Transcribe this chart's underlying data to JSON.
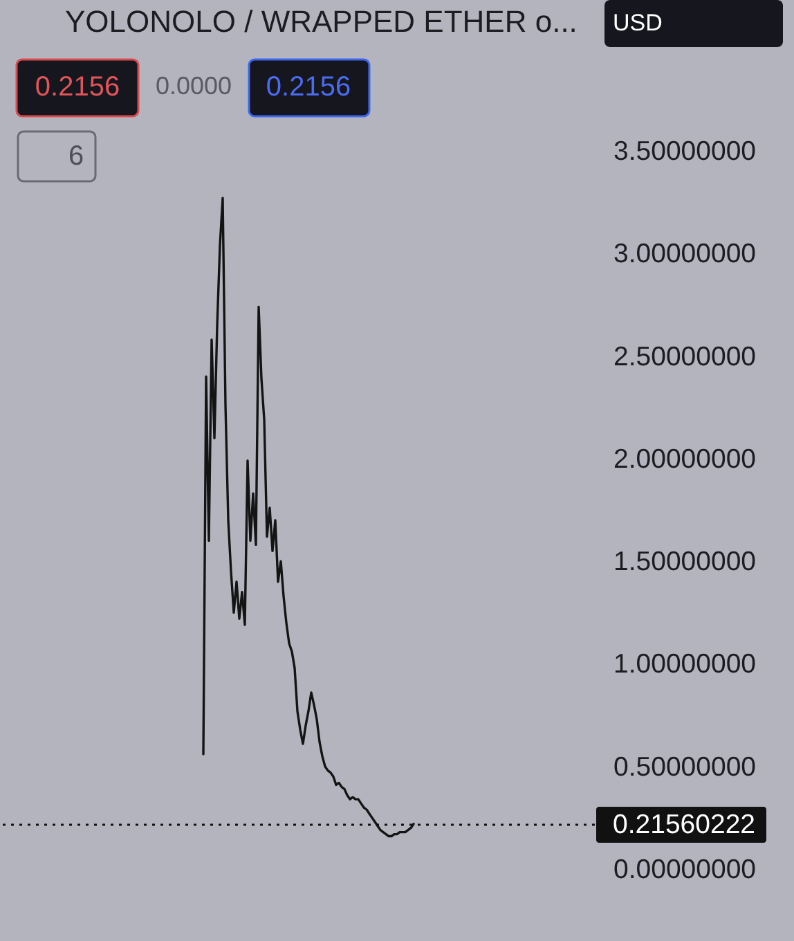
{
  "chart_data": {
    "type": "line",
    "title": "YOLONOLO / WRAPPED ETHER o...",
    "categories": [
      null,
      null,
      null,
      null,
      null,
      null,
      null,
      null,
      null,
      null,
      null,
      null,
      null,
      null,
      null,
      null,
      null,
      null,
      null,
      null,
      null,
      null,
      null,
      null,
      null,
      null,
      null,
      null,
      null,
      null,
      null,
      null,
      null,
      null,
      null,
      null,
      null,
      null,
      null,
      null,
      null,
      null,
      null,
      null,
      null,
      null,
      null,
      null,
      null,
      null,
      null,
      null,
      null,
      null,
      null,
      null,
      null,
      null,
      null,
      null,
      null,
      null,
      null,
      null,
      null,
      null,
      null,
      null,
      null,
      null,
      null,
      null,
      null,
      null,
      null,
      null,
      null,
      null,
      null,
      null,
      null,
      null,
      null,
      null,
      null,
      null,
      null,
      null,
      null,
      null,
      null,
      null,
      null,
      null,
      null,
      null,
      null,
      null,
      null,
      null,
      null,
      null,
      null,
      null,
      null,
      null,
      null,
      null,
      null,
      null,
      null,
      null,
      null,
      null,
      null,
      null,
      null,
      null,
      null,
      null,
      null,
      null,
      null,
      null,
      null,
      null,
      null,
      null,
      null,
      null,
      null,
      null,
      null,
      null,
      null,
      null,
      null,
      null,
      null,
      null,
      null,
      null,
      null,
      null,
      null,
      null,
      null,
      null,
      null,
      null,
      null,
      null,
      null,
      null,
      null,
      null,
      null,
      null,
      null,
      null,
      null,
      null,
      null,
      null,
      null,
      null,
      null,
      null,
      null,
      null,
      null,
      null,
      null,
      null,
      null,
      null,
      null,
      null,
      null,
      null,
      null,
      null,
      null,
      null,
      null,
      null,
      null,
      null,
      null,
      null,
      null,
      null,
      null,
      null,
      null,
      null,
      null,
      null,
      null,
      null,
      null,
      null,
      null,
      null,
      null,
      null,
      null,
      null,
      null,
      null,
      null,
      null,
      null,
      null,
      null
    ],
    "series": [
      {
        "color": "#141414",
        "values": [
          null,
          null,
          null,
          null,
          null,
          null,
          null,
          null,
          null,
          null,
          null,
          null,
          null,
          null,
          null,
          null,
          null,
          null,
          null,
          null,
          null,
          null,
          null,
          null,
          null,
          null,
          null,
          null,
          null,
          null,
          null,
          null,
          null,
          null,
          null,
          null,
          null,
          null,
          null,
          null,
          null,
          null,
          null,
          null,
          null,
          null,
          null,
          null,
          null,
          null,
          null,
          null,
          null,
          null,
          null,
          null,
          null,
          null,
          null,
          null,
          null,
          null,
          null,
          null,
          null,
          null,
          null,
          null,
          null,
          null,
          null,
          null,
          null,
          0.56,
          2.4,
          1.6,
          2.58,
          2.1,
          2.65,
          3.04,
          3.27,
          2.26,
          1.7,
          1.45,
          1.25,
          1.4,
          1.22,
          1.35,
          1.19,
          1.99,
          1.6,
          1.83,
          1.58,
          2.74,
          2.39,
          2.19,
          1.62,
          1.76,
          1.55,
          1.7,
          1.4,
          1.5,
          1.33,
          1.2,
          1.1,
          1.06,
          0.98,
          0.77,
          0.68,
          0.61,
          0.7,
          0.77,
          0.86,
          0.8,
          0.73,
          0.62,
          0.55,
          0.5,
          0.48,
          0.47,
          0.45,
          0.41,
          0.42,
          0.4,
          0.39,
          0.36,
          0.34,
          0.35,
          0.34,
          0.34,
          0.32,
          0.3,
          0.29,
          0.27,
          0.25,
          0.23,
          0.21,
          0.19,
          0.18,
          0.17,
          0.16,
          0.16,
          0.17,
          0.17,
          0.18,
          0.18,
          0.18,
          0.19,
          0.2,
          0.22,
          null,
          null,
          null,
          null,
          null,
          null,
          null,
          null,
          null,
          null,
          null,
          null,
          null,
          null,
          null,
          null,
          null,
          null,
          null,
          null,
          null,
          null,
          null,
          null,
          null,
          null,
          null,
          null,
          null,
          null,
          null,
          null,
          null,
          null,
          null,
          null,
          null,
          null,
          null,
          null,
          null,
          null,
          null,
          null,
          null,
          null,
          null,
          null,
          null,
          null,
          null,
          null,
          null,
          null,
          null,
          null,
          null,
          null,
          null,
          null,
          null,
          null,
          null,
          null,
          null
        ]
      }
    ],
    "ylim": [
      0,
      3.5
    ],
    "yticks": [
      {
        "value": 0,
        "label": "0.00000000"
      },
      {
        "value": 0.5,
        "label": "0.50000000"
      },
      {
        "value": 1,
        "label": "1.00000000"
      },
      {
        "value": 1.5,
        "label": "1.50000000"
      },
      {
        "value": 2,
        "label": "2.00000000"
      },
      {
        "value": 2.5,
        "label": "2.50000000"
      },
      {
        "value": 3,
        "label": "3.00000000"
      },
      {
        "value": 3.5,
        "label": "3.50000000"
      }
    ],
    "tick_labels": "y",
    "ref_lines": [
      {
        "axis": "y",
        "value": 0.21560222,
        "label": "0.21560222",
        "color": "#111111",
        "line_style": "dotted"
      }
    ],
    "annotations": [
      "USD",
      "0.2156",
      "0.0000",
      "0.2156",
      "6"
    ]
  }
}
